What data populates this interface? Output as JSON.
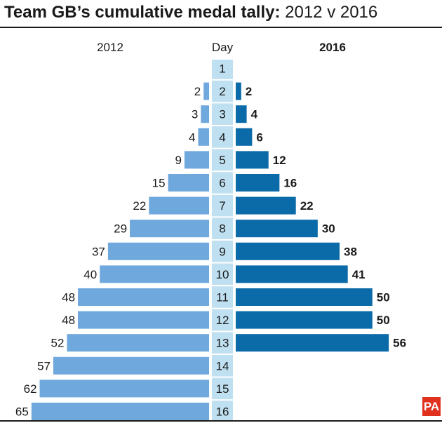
{
  "title": {
    "bold": "Team GB’s cumulative medal tally:",
    "regular": " 2012 v 2016"
  },
  "chart_data": {
    "type": "bar",
    "title": "Team GB’s cumulative medal tally: 2012 v 2016",
    "categories": [
      "1",
      "2",
      "3",
      "4",
      "5",
      "6",
      "7",
      "8",
      "9",
      "10",
      "11",
      "12",
      "13",
      "14",
      "15",
      "16"
    ],
    "center_header": "Day",
    "series": [
      {
        "name": "2012",
        "values": [
          null,
          2,
          3,
          4,
          9,
          15,
          22,
          29,
          37,
          40,
          48,
          48,
          52,
          57,
          62,
          65
        ]
      },
      {
        "name": "2016",
        "values": [
          null,
          2,
          4,
          6,
          12,
          16,
          22,
          30,
          38,
          41,
          50,
          50,
          56,
          null,
          null,
          null
        ]
      }
    ],
    "grid": false,
    "colors": {
      "2012": "#6fa8dc",
      "2016": "#0b6aa8",
      "day_column": "#bfe0f1"
    }
  },
  "logo": "PA"
}
